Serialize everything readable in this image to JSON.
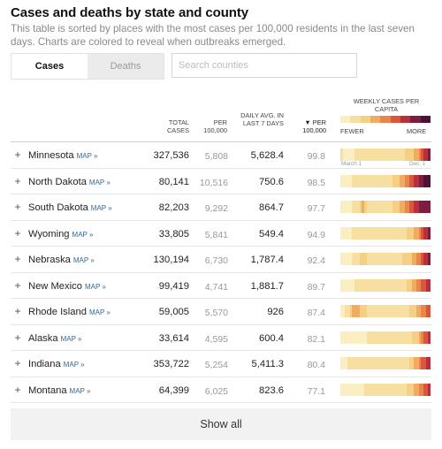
{
  "title": "Cases and deaths by state and county",
  "subtitle": "This table is sorted by places with the most cases per 100,000 residents in the last seven days. Charts are colored to reveal when outbreaks emerged.",
  "tabs": [
    {
      "label": "Cases",
      "active": true
    },
    {
      "label": "Deaths",
      "active": false
    }
  ],
  "search": {
    "placeholder": "Search counties",
    "value": ""
  },
  "columns": {
    "total_cases": "TOTAL CASES",
    "per_100k": "PER 100,000",
    "daily_avg": "DAILY AVG. IN LAST 7 DAYS",
    "sort_marker": "▼",
    "daily_per_100k": "PER 100,000",
    "weekly_chart": "WEEKLY CASES PER CAPITA"
  },
  "legend": {
    "fewer": "FEWER",
    "more": "MORE",
    "colors": [
      "#fbeec0",
      "#f6dfa0",
      "#f4cf84",
      "#efad63",
      "#e8874a",
      "#d9573a",
      "#b9303c",
      "#7f1d3c",
      "#4e1135"
    ]
  },
  "first_row_dates": {
    "start": "March 1",
    "end": "Dec. 1"
  },
  "map_label": "MAP »",
  "rows": [
    {
      "state": "Minnesota",
      "total": "327,536",
      "per100k": "5,808",
      "avg": "5,628.4",
      "avg_per100k": "99.8",
      "weekly": [
        1,
        0,
        0,
        0,
        0,
        0,
        1,
        1,
        1,
        1,
        1,
        1,
        1,
        1,
        1,
        1,
        1,
        1,
        1,
        1,
        1,
        1,
        1,
        1,
        1,
        1,
        1,
        2,
        2,
        2,
        2,
        3,
        3,
        4,
        5,
        6,
        6,
        7
      ]
    },
    {
      "state": "North Dakota",
      "total": "80,141",
      "per100k": "10,516",
      "avg": "750.6",
      "avg_per100k": "98.5",
      "weekly": [
        0,
        0,
        0,
        0,
        0,
        1,
        1,
        1,
        1,
        1,
        1,
        1,
        1,
        1,
        1,
        1,
        1,
        1,
        1,
        1,
        1,
        1,
        2,
        2,
        2,
        3,
        3,
        4,
        4,
        5,
        5,
        6,
        6,
        7,
        7,
        8,
        8,
        8
      ]
    },
    {
      "state": "South Dakota",
      "total": "82,203",
      "per100k": "9,292",
      "avg": "864.7",
      "avg_per100k": "97.7",
      "weekly": [
        0,
        0,
        0,
        0,
        0,
        1,
        1,
        1,
        2,
        3,
        2,
        1,
        1,
        1,
        1,
        1,
        1,
        1,
        1,
        1,
        1,
        1,
        2,
        2,
        2,
        3,
        3,
        4,
        4,
        5,
        5,
        6,
        6,
        7,
        7,
        7,
        7,
        7
      ]
    },
    {
      "state": "Wyoming",
      "total": "33,805",
      "per100k": "5,841",
      "avg": "549.4",
      "avg_per100k": "94.9",
      "weekly": [
        0,
        0,
        0,
        0,
        0,
        1,
        1,
        1,
        1,
        1,
        1,
        1,
        1,
        1,
        1,
        1,
        1,
        1,
        1,
        1,
        1,
        1,
        1,
        1,
        1,
        1,
        1,
        1,
        2,
        2,
        2,
        3,
        3,
        4,
        5,
        6,
        6,
        7
      ]
    },
    {
      "state": "Nebraska",
      "total": "130,194",
      "per100k": "6,730",
      "avg": "1,787.4",
      "avg_per100k": "92.4",
      "weekly": [
        0,
        0,
        0,
        0,
        0,
        1,
        1,
        1,
        2,
        2,
        2,
        1,
        1,
        1,
        1,
        1,
        1,
        1,
        1,
        1,
        1,
        1,
        1,
        1,
        1,
        1,
        2,
        2,
        2,
        2,
        3,
        3,
        4,
        4,
        5,
        6,
        6,
        7
      ]
    },
    {
      "state": "New Mexico",
      "total": "99,419",
      "per100k": "4,741",
      "avg": "1,881.7",
      "avg_per100k": "89.7",
      "weekly": [
        0,
        0,
        0,
        0,
        0,
        0,
        1,
        1,
        1,
        1,
        1,
        1,
        1,
        1,
        1,
        1,
        1,
        1,
        1,
        1,
        1,
        1,
        1,
        1,
        1,
        1,
        1,
        1,
        2,
        2,
        3,
        3,
        4,
        4,
        5,
        5,
        6,
        6
      ]
    },
    {
      "state": "Rhode Island",
      "total": "59,005",
      "per100k": "5,570",
      "avg": "926",
      "avg_per100k": "87.4",
      "weekly": [
        0,
        0,
        1,
        1,
        2,
        3,
        3,
        3,
        2,
        2,
        2,
        1,
        1,
        1,
        1,
        1,
        1,
        1,
        1,
        1,
        1,
        1,
        1,
        1,
        1,
        1,
        1,
        1,
        1,
        2,
        2,
        2,
        3,
        3,
        4,
        4,
        5,
        5
      ]
    },
    {
      "state": "Alaska",
      "total": "33,614",
      "per100k": "4,595",
      "avg": "600.4",
      "avg_per100k": "82.1",
      "weekly": [
        0,
        0,
        0,
        0,
        0,
        0,
        0,
        0,
        0,
        0,
        0,
        1,
        1,
        1,
        1,
        1,
        1,
        1,
        1,
        1,
        1,
        1,
        1,
        1,
        1,
        1,
        1,
        1,
        1,
        1,
        2,
        2,
        2,
        3,
        4,
        5,
        5,
        6
      ]
    },
    {
      "state": "Indiana",
      "total": "353,722",
      "per100k": "5,254",
      "avg": "5,411.3",
      "avg_per100k": "80.4",
      "weekly": [
        0,
        0,
        0,
        1,
        1,
        1,
        1,
        1,
        1,
        1,
        1,
        1,
        1,
        1,
        1,
        1,
        1,
        1,
        1,
        1,
        1,
        1,
        1,
        1,
        1,
        1,
        1,
        1,
        1,
        2,
        2,
        3,
        3,
        4,
        5,
        5,
        6,
        6
      ]
    },
    {
      "state": "Montana",
      "total": "64,399",
      "per100k": "6,025",
      "avg": "823.6",
      "avg_per100k": "77.1",
      "weekly": [
        0,
        0,
        0,
        0,
        0,
        0,
        0,
        0,
        0,
        0,
        1,
        1,
        1,
        1,
        1,
        1,
        1,
        1,
        1,
        1,
        1,
        1,
        1,
        1,
        1,
        1,
        1,
        1,
        2,
        2,
        2,
        3,
        3,
        4,
        4,
        5,
        5,
        6
      ]
    }
  ],
  "show_all": "Show all"
}
